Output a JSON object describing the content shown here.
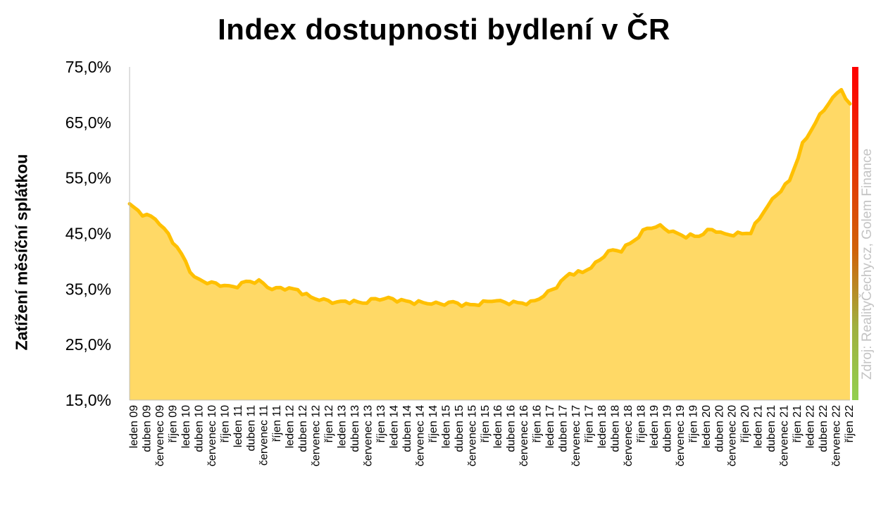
{
  "chart_data": {
    "type": "area",
    "title": "Index dostupnosti bydlení  v ČR",
    "ylabel": "Zatížení měsíční splátkou",
    "source": "Zdroj: RealityČechy.cz, Golem Finance",
    "ylim": [
      15,
      75
    ],
    "yticks": [
      "15,0%",
      "25,0%",
      "35,0%",
      "45,0%",
      "55,0%",
      "65,0%",
      "75,0%"
    ],
    "ytick_values": [
      15,
      25,
      35,
      45,
      55,
      65,
      75
    ],
    "x_tick_labels": [
      "leden 09",
      "duben 09",
      "červenec 09",
      "říjen 09",
      "leden 10",
      "duben 10",
      "červenec 10",
      "říjen 10",
      "leden 11",
      "duben 11",
      "červenec 11",
      "říjen 11",
      "leden 12",
      "duben 12",
      "červenec 12",
      "říjen 12",
      "leden 13",
      "duben 13",
      "červenec 13",
      "říjen 13",
      "leden 14",
      "duben 14",
      "červenec 14",
      "říjen 14",
      "leden 15",
      "duben 15",
      "červenec 15",
      "říjen 15",
      "leden 16",
      "duben 16",
      "červenec 16",
      "říjen 16",
      "leden 17",
      "duben 17",
      "červenec 17",
      "říjen 17",
      "leden 18",
      "duben 18",
      "červenec 18",
      "říjen 18",
      "leden 19",
      "duben 19",
      "červenec 19",
      "říjen 19",
      "leden 20",
      "duben 20",
      "červenec 20",
      "říjen 20",
      "leden 21",
      "duben 21",
      "červenec 21",
      "říjen 21",
      "leden 22",
      "duben 22",
      "červenec 22",
      "říjen 22"
    ],
    "quarterly_values": [
      50.2,
      48.5,
      47.7,
      44.8,
      41.3,
      37.0,
      36.2,
      35.8,
      35.3,
      36.3,
      36.4,
      35.0,
      35.2,
      34.8,
      33.5,
      33.0,
      32.6,
      32.8,
      32.5,
      33.2,
      33.3,
      32.9,
      32.6,
      32.5,
      32.3,
      32.6,
      32.1,
      32.3,
      33.0,
      32.6,
      32.5,
      32.5,
      33.8,
      35.5,
      37.8,
      38.0,
      39.5,
      41.8,
      42.0,
      43.8,
      46.0,
      46.3,
      45.2,
      44.5,
      44.6,
      45.8,
      44.8,
      44.9,
      45.2,
      49.0,
      52.0,
      54.5,
      61.0,
      65.0,
      68.5,
      71.0,
      66.5
    ],
    "series": [
      {
        "color": "#ffc000",
        "fill": "#ffd966"
      }
    ],
    "indicator_colors": [
      "#ff0000",
      "#92d050"
    ],
    "grid": false
  }
}
